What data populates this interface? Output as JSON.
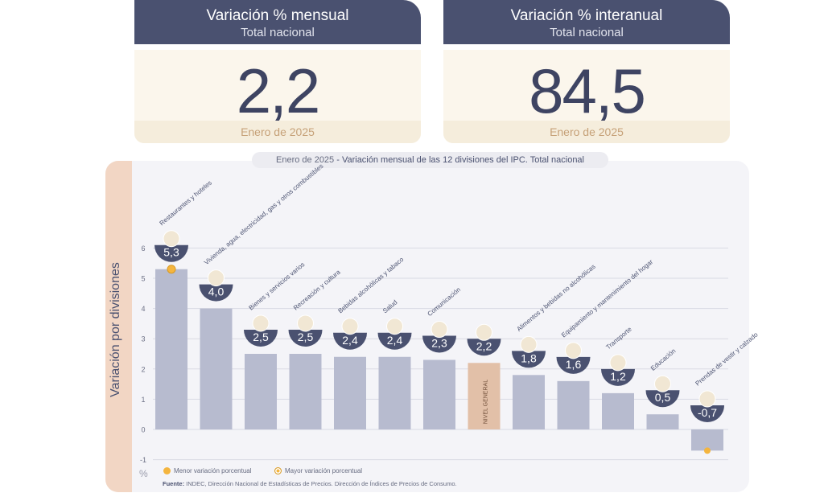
{
  "cards": [
    {
      "title": "Variación % mensual",
      "subtitle": "Total nacional",
      "value": "2,2",
      "period": "Enero de 2025"
    },
    {
      "title": "Variación % interanual",
      "subtitle": "Total nacional",
      "value": "84,5",
      "period": "Enero de 2025"
    }
  ],
  "panel": {
    "pill_period": "Enero de 2025",
    "pill_text": " - Variación mensual de las 12 divisiones del IPC. Total nacional",
    "ylabel": "Variación por divisiones",
    "unit": "%",
    "legend_min": "Menor variación porcentual",
    "legend_max": "Mayor variación porcentual",
    "source_label": "Fuente:",
    "source_text": " INDEC, Dirección Nacional de Estadísticas de Precios. Dirección de Índices de Precios de Consumo."
  },
  "colors": {
    "bar": "#b7bbcf",
    "general_bar": "#e2c0a8",
    "bubble": "#4a5170",
    "marker": "#f4b53f",
    "header": "#4a5170"
  },
  "chart_data": {
    "type": "bar",
    "ylim": [
      -1,
      6
    ],
    "yticks": [
      -1,
      0,
      1,
      2,
      3,
      4,
      5,
      6
    ],
    "grid": true,
    "categories": [
      "Restaurantes y hoteles",
      "Vivienda, agua, electricidad, gas y otros combustibles",
      "Bienes y servicios varios",
      "Recreación y cultura",
      "Bebidas alcohólicas y tabaco",
      "Salud",
      "Comunicación",
      "NIVEL GENERAL",
      "Alimentos y bebidas no alcohólicas",
      "Equipamiento y mantenimiento del hogar",
      "Transporte",
      "Educación",
      "Prendas de vestir y calzado"
    ],
    "values": [
      5.3,
      4.0,
      2.5,
      2.5,
      2.4,
      2.4,
      2.3,
      2.2,
      1.8,
      1.6,
      1.2,
      0.5,
      -0.7
    ],
    "value_labels": [
      "5,3",
      "4,0",
      "2,5",
      "2,5",
      "2,4",
      "2,4",
      "2,3",
      "2,2",
      "1,8",
      "1,6",
      "1,2",
      "0,5",
      "-0,7"
    ],
    "icons": [
      "cutlery-icon",
      "bulb-icon",
      "scissors-icon",
      "umbrella-icon",
      "drinks-icon",
      "health-cross-icon",
      "phone-icon",
      "basket-icon",
      "chicken-icon",
      "home-appliance-icon",
      "bus-card-icon",
      "notebook-icon",
      "tshirt-icon"
    ],
    "highlight_max_index": 0,
    "highlight_min_index": 12
  }
}
